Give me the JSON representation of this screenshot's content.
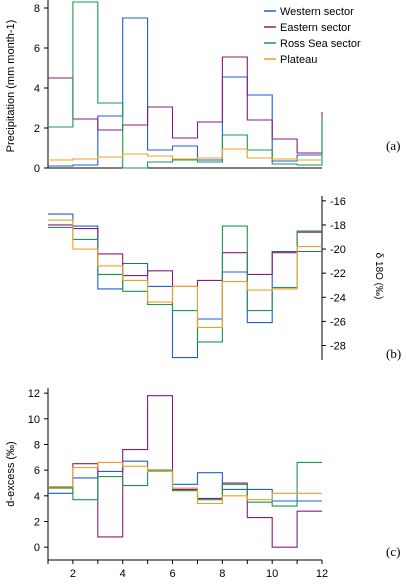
{
  "chart_data": [
    {
      "type": "line",
      "step": true,
      "panel_label": "(a)",
      "ylabel": "Precipitation (mm month-1)",
      "ylim": [
        0,
        8.4
      ],
      "yticks": [
        0,
        2,
        4,
        6,
        8
      ],
      "xlim": [
        1,
        12
      ],
      "legend_position": "top-right",
      "x": [
        1,
        2,
        3,
        4,
        5,
        6,
        7,
        8,
        9,
        10,
        11,
        12
      ],
      "series": [
        {
          "name": "Western sector",
          "color": "#1f5fd8",
          "values": [
            0.1,
            0.15,
            2.6,
            7.5,
            0.9,
            1.1,
            0.4,
            4.55,
            3.65,
            0.35,
            0.65,
            0.65
          ]
        },
        {
          "name": "Eastern sector",
          "color": "#8b1a7a",
          "values": [
            4.5,
            2.45,
            1.9,
            2.15,
            3.05,
            1.5,
            2.3,
            5.55,
            2.4,
            1.45,
            0.75,
            2.8
          ]
        },
        {
          "name": "Ross Sea sector",
          "color": "#1a9850",
          "values": [
            2.05,
            8.3,
            3.25,
            0.0,
            0.3,
            0.4,
            0.3,
            1.65,
            0.9,
            0.2,
            0.15,
            2.55
          ]
        },
        {
          "name": "Plateau",
          "color": "#f0a020",
          "values": [
            0.4,
            0.45,
            0.55,
            0.7,
            0.6,
            0.45,
            0.5,
            0.95,
            0.5,
            0.45,
            0.4,
            0.4
          ]
        }
      ]
    },
    {
      "type": "line",
      "step": true,
      "panel_label": "(b)",
      "ylabel": "δ 18O (‰)",
      "ylim": [
        -29.2,
        -15.6
      ],
      "yticks": [
        -28,
        -26,
        -24,
        -22,
        -20,
        -18,
        -16
      ],
      "yaxis_side": "right",
      "xlim": [
        1,
        12
      ],
      "x": [
        1,
        2,
        3,
        4,
        5,
        6,
        7,
        8,
        9,
        10,
        11,
        12
      ],
      "series": [
        {
          "name": "Western sector",
          "color": "#1f5fd8",
          "values": [
            -17.1,
            -18.1,
            -23.3,
            -21.2,
            -23.1,
            -29.0,
            -25.8,
            -21.9,
            -26.1,
            -20.2,
            -20.2,
            -20.2
          ]
        },
        {
          "name": "Eastern sector",
          "color": "#8b1a7a",
          "values": [
            -18.0,
            -18.3,
            -20.4,
            -22.2,
            -21.8,
            -23.1,
            -22.6,
            -20.3,
            -22.1,
            -20.3,
            -18.6,
            -18.6
          ]
        },
        {
          "name": "Ross Sea sector",
          "color": "#1a9850",
          "values": [
            -18.2,
            -19.2,
            -22.1,
            -23.5,
            -24.6,
            -25.1,
            -27.7,
            -18.1,
            -25.1,
            -23.2,
            -18.5,
            -18.5
          ]
        },
        {
          "name": "Plateau",
          "color": "#f0a020",
          "values": [
            -17.6,
            -20.0,
            -21.4,
            -22.6,
            -24.4,
            -23.1,
            -26.5,
            -22.7,
            -23.4,
            -23.3,
            -19.8,
            -19.8
          ]
        }
      ]
    },
    {
      "type": "line",
      "step": true,
      "panel_label": "(c)",
      "ylabel": "d-excess (‰)",
      "ylim": [
        -1,
        12.4
      ],
      "yticks": [
        0,
        2,
        4,
        6,
        8,
        10,
        12
      ],
      "xlim": [
        1,
        12
      ],
      "xticks": [
        2,
        4,
        6,
        8,
        10,
        12
      ],
      "x": [
        1,
        2,
        3,
        4,
        5,
        6,
        7,
        8,
        9,
        10,
        11,
        12
      ],
      "series": [
        {
          "name": "Western sector",
          "color": "#1f5fd8",
          "values": [
            4.2,
            5.4,
            5.9,
            6.7,
            6.0,
            4.9,
            5.8,
            4.5,
            4.5,
            3.6,
            3.6,
            3.6
          ]
        },
        {
          "name": "Eastern sector",
          "color": "#8b1a7a",
          "values": [
            4.7,
            6.5,
            0.8,
            7.6,
            11.8,
            4.5,
            3.8,
            5.0,
            2.3,
            0.0,
            2.8,
            2.8
          ]
        },
        {
          "name": "Ross Sea sector",
          "color": "#1a9850",
          "values": [
            4.6,
            3.7,
            5.5,
            4.8,
            6.0,
            4.4,
            3.7,
            4.9,
            3.5,
            3.2,
            6.6,
            6.6
          ]
        },
        {
          "name": "Plateau",
          "color": "#f0a020",
          "values": [
            4.7,
            6.2,
            6.6,
            6.3,
            5.9,
            4.6,
            3.4,
            4.0,
            3.7,
            4.2,
            4.2,
            4.2
          ]
        }
      ]
    }
  ]
}
